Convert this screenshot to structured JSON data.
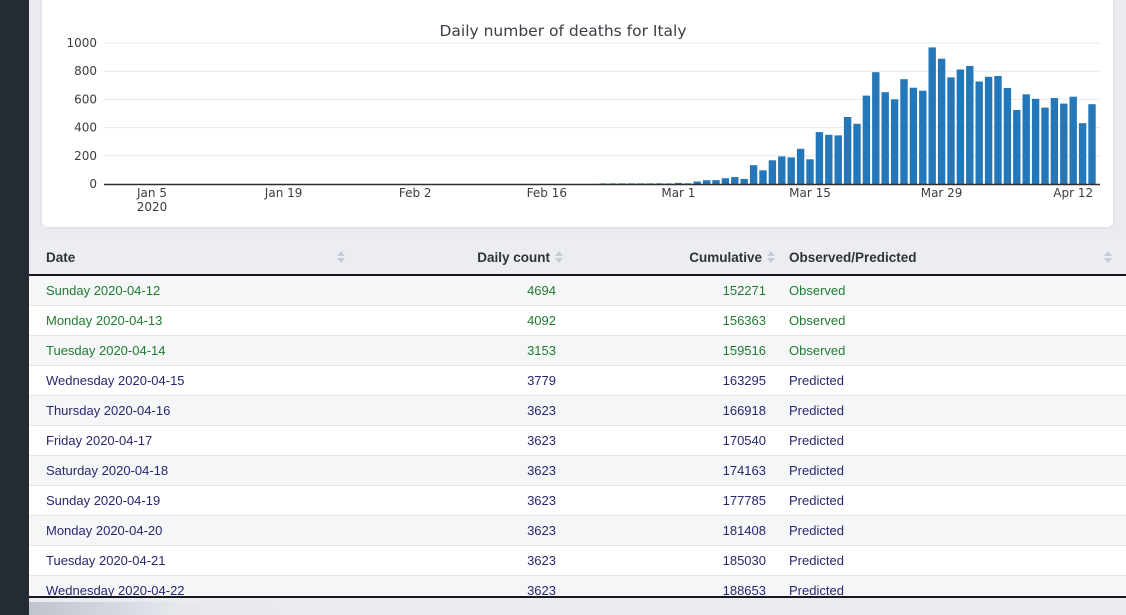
{
  "chart_data": {
    "type": "bar",
    "title": "Daily number of deaths for Italy",
    "xlabel": "",
    "ylabel": "",
    "ylim": [
      0,
      1000
    ],
    "yticks": [
      0,
      200,
      400,
      600,
      800,
      1000
    ],
    "grid": true,
    "legend": null,
    "bar_color": "#2478b9",
    "start_date": "2020-02-22",
    "values": [
      1,
      1,
      1,
      4,
      3,
      2,
      5,
      4,
      8,
      5,
      18,
      27,
      28,
      41,
      49,
      36,
      133,
      97,
      168,
      196,
      189,
      250,
      175,
      368,
      349,
      345,
      475,
      427,
      627,
      793,
      651,
      601,
      743,
      683,
      662,
      969,
      889,
      756,
      812,
      837,
      727,
      760,
      766,
      681,
      525,
      636,
      604,
      542,
      610,
      570,
      619,
      431,
      566
    ],
    "xticks": [
      {
        "date": "2020-01-05",
        "label": "Jan 5",
        "sub": "2020"
      },
      {
        "date": "2020-01-19",
        "label": "Jan 19",
        "sub": ""
      },
      {
        "date": "2020-02-02",
        "label": "Feb 2",
        "sub": ""
      },
      {
        "date": "2020-02-16",
        "label": "Feb 16",
        "sub": ""
      },
      {
        "date": "2020-03-01",
        "label": "Mar 1",
        "sub": ""
      },
      {
        "date": "2020-03-15",
        "label": "Mar 15",
        "sub": ""
      },
      {
        "date": "2020-03-29",
        "label": "Mar 29",
        "sub": ""
      },
      {
        "date": "2020-04-12",
        "label": "Apr 12",
        "sub": ""
      }
    ]
  },
  "colors": {
    "observed_text": "#1f7c2f",
    "predicted_text": "#26276f",
    "bar": "#2478b9",
    "sidebar": "#242b33",
    "header_bg": "#ebedf3"
  },
  "table": {
    "columns": [
      {
        "label": "Date"
      },
      {
        "label": "Daily count"
      },
      {
        "label": "Cumulative"
      },
      {
        "label": "Observed/Predicted"
      }
    ],
    "rows": [
      {
        "date": "Sunday 2020-04-12",
        "daily": "4694",
        "cumulative": "152271",
        "status": "Observed",
        "type": "observed"
      },
      {
        "date": "Monday 2020-04-13",
        "daily": "4092",
        "cumulative": "156363",
        "status": "Observed",
        "type": "observed"
      },
      {
        "date": "Tuesday 2020-04-14",
        "daily": "3153",
        "cumulative": "159516",
        "status": "Observed",
        "type": "observed"
      },
      {
        "date": "Wednesday 2020-04-15",
        "daily": "3779",
        "cumulative": "163295",
        "status": "Predicted",
        "type": "predicted"
      },
      {
        "date": "Thursday 2020-04-16",
        "daily": "3623",
        "cumulative": "166918",
        "status": "Predicted",
        "type": "predicted"
      },
      {
        "date": "Friday 2020-04-17",
        "daily": "3623",
        "cumulative": "170540",
        "status": "Predicted",
        "type": "predicted"
      },
      {
        "date": "Saturday 2020-04-18",
        "daily": "3623",
        "cumulative": "174163",
        "status": "Predicted",
        "type": "predicted"
      },
      {
        "date": "Sunday 2020-04-19",
        "daily": "3623",
        "cumulative": "177785",
        "status": "Predicted",
        "type": "predicted"
      },
      {
        "date": "Monday 2020-04-20",
        "daily": "3623",
        "cumulative": "181408",
        "status": "Predicted",
        "type": "predicted"
      },
      {
        "date": "Tuesday 2020-04-21",
        "daily": "3623",
        "cumulative": "185030",
        "status": "Predicted",
        "type": "predicted"
      },
      {
        "date": "Wednesday 2020-04-22",
        "daily": "3623",
        "cumulative": "188653",
        "status": "Predicted",
        "type": "predicted"
      }
    ]
  }
}
